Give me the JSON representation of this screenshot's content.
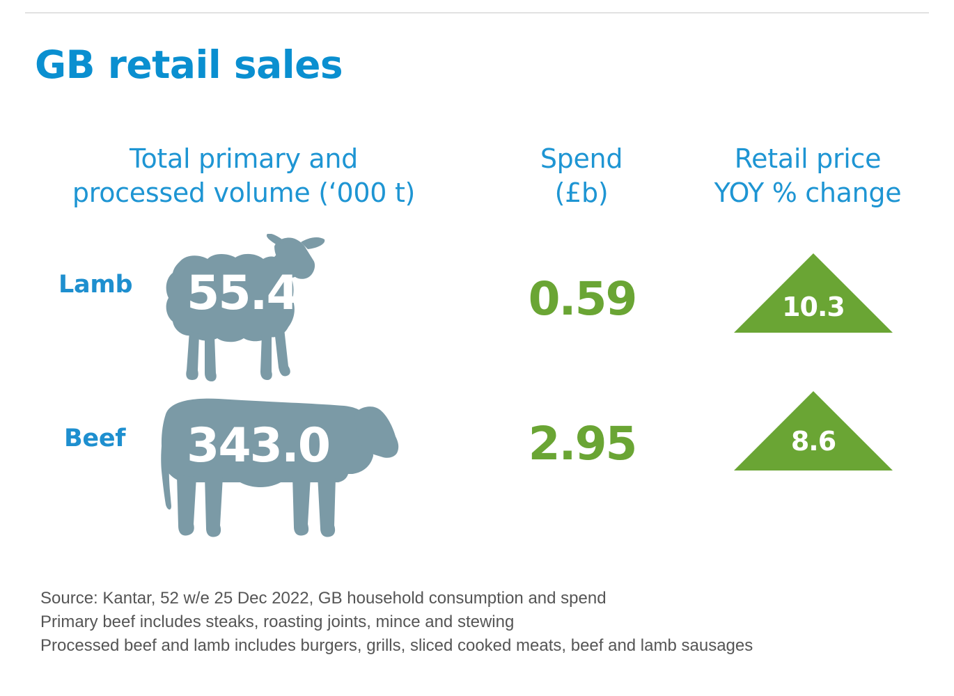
{
  "title": "GB retail sales",
  "headers": {
    "volume": [
      "Total primary and",
      "processed volume (‘000 t)"
    ],
    "spend": [
      "Spend",
      "(£b)"
    ],
    "price": [
      "Retail price",
      "YOY % change"
    ]
  },
  "chart_data": {
    "type": "table",
    "title": "GB retail sales",
    "columns": [
      "Total primary and processed volume (‘000 t)",
      "Spend (£b)",
      "Retail price YOY % change"
    ],
    "rows": [
      {
        "label": "Lamb",
        "volume": 55.4,
        "volume_text": "55.4",
        "spend": 0.59,
        "spend_text": "0.59",
        "price_change": 10.3,
        "price_change_text": "10.3",
        "direction": "up"
      },
      {
        "label": "Beef",
        "volume": 343.0,
        "volume_text": "343.0",
        "spend": 2.95,
        "spend_text": "2.95",
        "price_change": 8.6,
        "price_change_text": "8.6",
        "direction": "up"
      }
    ]
  },
  "footnotes": [
    "Source: Kantar, 52 w/e 25 Dec 2022, GB household consumption and spend",
    "Primary beef includes steaks, roasting joints, mince and stewing",
    "Processed beef and lamb includes burgers, grills, sliced cooked meats, beef and lamb sausages"
  ],
  "colors": {
    "title": "#0a8fd0",
    "header": "#1e95d3",
    "animal": "#7b9aa6",
    "positive": "#6aa534",
    "footnote": "#555555"
  },
  "icons": {
    "lamb": "sheep-icon",
    "beef": "cow-icon",
    "increase": "up-triangle-icon"
  }
}
